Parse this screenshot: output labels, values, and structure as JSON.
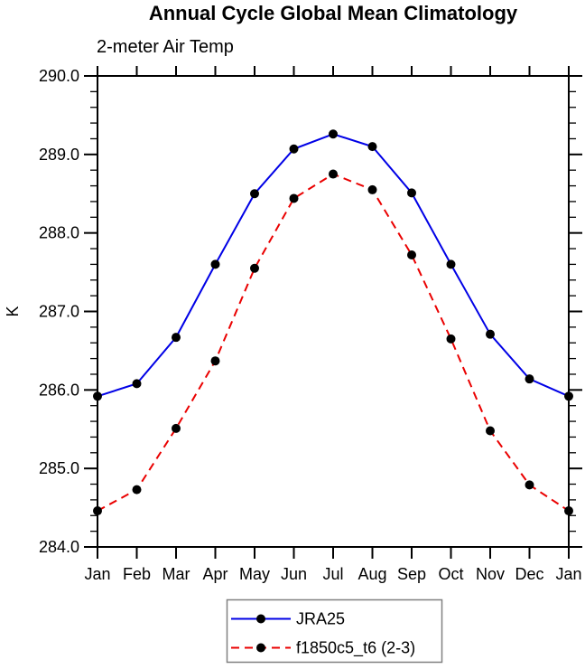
{
  "chart": {
    "title": "Annual Cycle Global Mean Climatology",
    "subtitle": "2-meter Air Temp",
    "ylabel": "K"
  },
  "chart_data": {
    "type": "line",
    "title": "Annual Cycle Global Mean Climatology",
    "subtitle": "2-meter Air Temp",
    "xlabel": "",
    "ylabel": "K",
    "categories": [
      "Jan",
      "Feb",
      "Mar",
      "Apr",
      "May",
      "Jun",
      "Jul",
      "Aug",
      "Sep",
      "Oct",
      "Nov",
      "Dec",
      "Jan"
    ],
    "ylim": [
      284.0,
      290.0
    ],
    "ytick_major_step": 1.0,
    "ytick_minor_step": 0.2,
    "ytick_labels": [
      "284.0",
      "285.0",
      "286.0",
      "287.0",
      "288.0",
      "289.0",
      "290.0"
    ],
    "grid": false,
    "frame": "box",
    "legend_position": "bottom-center",
    "marker_color": "#000000",
    "series": [
      {
        "name": "JRA25",
        "color": "#0000e6",
        "line_style": "solid",
        "marker": "filled-circle",
        "values": [
          285.92,
          286.08,
          286.67,
          287.6,
          288.5,
          289.07,
          289.26,
          289.1,
          288.51,
          287.6,
          286.71,
          286.14,
          285.92
        ]
      },
      {
        "name": "f1850c5_t6 (2-3)",
        "color": "#ea0000",
        "line_style": "dashed",
        "marker": "filled-circle",
        "values": [
          284.46,
          284.73,
          285.51,
          286.37,
          287.55,
          288.44,
          288.75,
          288.55,
          287.72,
          286.65,
          285.48,
          284.79,
          284.46
        ]
      }
    ]
  }
}
